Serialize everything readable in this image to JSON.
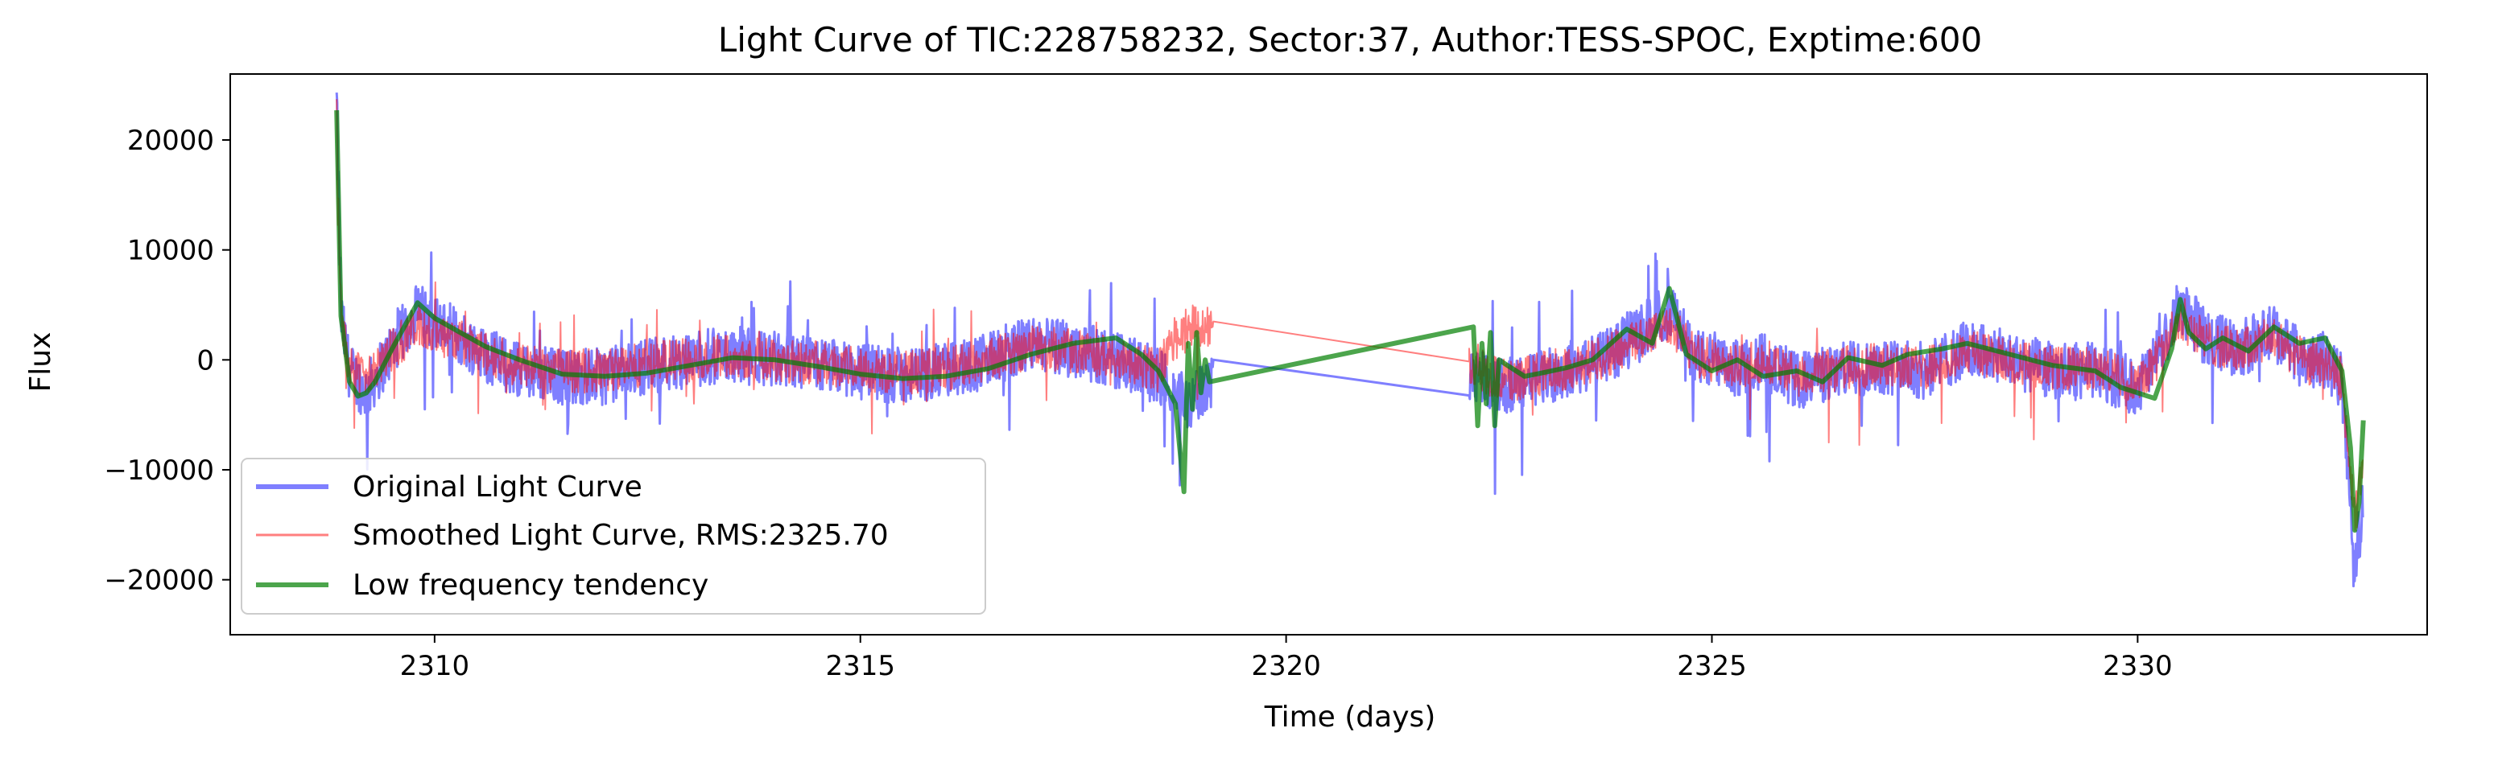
{
  "chart_data": {
    "type": "line",
    "title": "Light Curve of TIC:228758232, Sector:37, Author:TESS-SPOC, Exptime:600",
    "xlabel": "Time (days)",
    "ylabel": "Flux",
    "xlim": [
      2307.6,
      2333.4
    ],
    "ylim": [
      -25000,
      26000
    ],
    "xticks": [
      2310,
      2315,
      2320,
      2325,
      2330
    ],
    "xtick_labels": [
      "2310",
      "2315",
      "2320",
      "2325",
      "2330"
    ],
    "yticks": [
      -20000,
      -10000,
      0,
      10000,
      20000
    ],
    "ytick_labels": [
      "−20000",
      "−10000",
      "0",
      "10000",
      "20000"
    ],
    "grid": false,
    "legend_position": "lower-left",
    "series": [
      {
        "name": "Original Light Curve",
        "color": "#0000ff",
        "alpha": 0.5,
        "line_width": 3,
        "style": "noisy",
        "noise_amplitude": 2600,
        "x": [
          2308.85,
          2308.9,
          2309.0,
          2309.2,
          2309.5,
          2309.8,
          2310.2,
          2310.6,
          2311.0,
          2311.5,
          2312.0,
          2312.5,
          2313.0,
          2313.5,
          2314.0,
          2314.5,
          2315.0,
          2315.5,
          2316.0,
          2316.5,
          2317.0,
          2317.5,
          2318.0,
          2318.5,
          2318.7,
          2318.9,
          2319.1,
          2322.2,
          2322.4,
          2322.7,
          2323.0,
          2323.5,
          2324.0,
          2324.5,
          2324.8,
          2325.2,
          2325.6,
          2326.0,
          2326.5,
          2327.0,
          2327.5,
          2328.0,
          2328.5,
          2329.0,
          2329.5,
          2330.0,
          2330.3,
          2330.5,
          2330.8,
          2331.2,
          2331.6,
          2332.0,
          2332.2,
          2332.4,
          2332.55,
          2332.65
        ],
        "y": [
          23500,
          4000,
          -1000,
          -3000,
          1000,
          4500,
          2500,
          500,
          -1000,
          -1500,
          -1500,
          -500,
          0,
          500,
          0,
          -500,
          -1000,
          -1500,
          -1000,
          0,
          1500,
          1000,
          0,
          -1500,
          -3000,
          -4000,
          -2000,
          -1000,
          -2000,
          -2500,
          -1500,
          -500,
          1500,
          4500,
          500,
          -1000,
          0,
          -2000,
          -1000,
          -500,
          -1000,
          1000,
          0,
          -1000,
          -1000,
          -2500,
          1000,
          5000,
          2000,
          1000,
          2500,
          -500,
          0,
          -2000,
          -20000,
          -12000
        ]
      },
      {
        "name": "Smoothed Light Curve, RMS:2325.70",
        "color": "#ff0000",
        "alpha": 0.5,
        "line_width": 2,
        "style": "noisy",
        "noise_amplitude": 2000,
        "x": [
          2308.85,
          2308.9,
          2309.0,
          2309.2,
          2309.5,
          2309.8,
          2310.2,
          2310.6,
          2311.0,
          2311.5,
          2312.0,
          2312.5,
          2313.0,
          2313.5,
          2314.0,
          2314.5,
          2315.0,
          2315.5,
          2316.0,
          2316.5,
          2317.0,
          2317.5,
          2318.0,
          2318.5,
          2318.7,
          2318.9,
          2322.2,
          2322.4,
          2322.7,
          2323.0,
          2323.5,
          2324.0,
          2324.5,
          2324.8,
          2325.2,
          2325.6,
          2326.0,
          2326.5,
          2327.0,
          2327.5,
          2328.0,
          2328.5,
          2329.0,
          2329.5,
          2330.0,
          2330.3,
          2330.5,
          2330.8,
          2331.2,
          2331.6,
          2332.0,
          2332.2,
          2332.4,
          2332.55,
          2332.65
        ],
        "y": [
          21000,
          3500,
          -500,
          -2000,
          1000,
          3000,
          2000,
          500,
          -500,
          -1000,
          -1000,
          -200,
          0,
          500,
          0,
          -300,
          -800,
          -1200,
          -800,
          0,
          1200,
          800,
          0,
          -1000,
          2000,
          3000,
          -200,
          -1500,
          -2000,
          -1200,
          -400,
          1200,
          3500,
          500,
          -800,
          0,
          -1500,
          -800,
          -400,
          -800,
          800,
          0,
          -800,
          -800,
          -2000,
          800,
          4000,
          1600,
          800,
          2000,
          -400,
          0,
          -1800,
          -15000,
          -9000
        ]
      },
      {
        "name": "Low frequency tendency",
        "color": "#007f00",
        "alpha": 0.7,
        "line_width": 6,
        "style": "smooth",
        "x": [
          2308.85,
          2308.9,
          2309.0,
          2309.1,
          2309.2,
          2309.3,
          2309.5,
          2309.8,
          2310.0,
          2310.3,
          2310.6,
          2311.0,
          2311.5,
          2312.0,
          2312.5,
          2313.0,
          2313.5,
          2314.0,
          2314.5,
          2315.0,
          2315.5,
          2316.0,
          2316.5,
          2317.0,
          2317.5,
          2318.0,
          2318.3,
          2318.5,
          2318.6,
          2318.7,
          2318.8,
          2318.85,
          2318.9,
          2318.95,
          2319.0,
          2319.05,
          2319.1,
          2322.2,
          2322.25,
          2322.3,
          2322.35,
          2322.4,
          2322.45,
          2322.5,
          2322.6,
          2322.8,
          2323.0,
          2323.3,
          2323.6,
          2324.0,
          2324.3,
          2324.5,
          2324.7,
          2325.0,
          2325.3,
          2325.6,
          2326.0,
          2326.3,
          2326.6,
          2327.0,
          2327.3,
          2327.7,
          2328.0,
          2328.5,
          2329.0,
          2329.5,
          2329.8,
          2330.2,
          2330.4,
          2330.5,
          2330.6,
          2330.8,
          2331.0,
          2331.3,
          2331.6,
          2331.9,
          2332.2,
          2332.4,
          2332.5,
          2332.55,
          2332.6,
          2332.65
        ],
        "y": [
          22700,
          4000,
          -2000,
          -3300,
          -3000,
          -2000,
          1000,
          5200,
          3800,
          2500,
          1200,
          0,
          -1300,
          -1500,
          -1200,
          -500,
          200,
          0,
          -600,
          -1300,
          -1700,
          -1500,
          -800,
          500,
          1500,
          2000,
          500,
          -1000,
          -2500,
          -4000,
          -12000,
          1500,
          -4500,
          2500,
          -3000,
          0,
          -2000,
          3000,
          -6000,
          1500,
          -4000,
          2500,
          -6000,
          0,
          -500,
          -1500,
          -1200,
          -700,
          0,
          2800,
          1500,
          6500,
          500,
          -1000,
          0,
          -1500,
          -1000,
          -2000,
          200,
          -500,
          500,
          1000,
          1500,
          500,
          -500,
          -1000,
          -2500,
          -3500,
          1000,
          5500,
          2500,
          1000,
          2000,
          800,
          3000,
          1500,
          2000,
          -1000,
          -8000,
          -15500,
          -13000,
          -5500
        ]
      }
    ]
  }
}
